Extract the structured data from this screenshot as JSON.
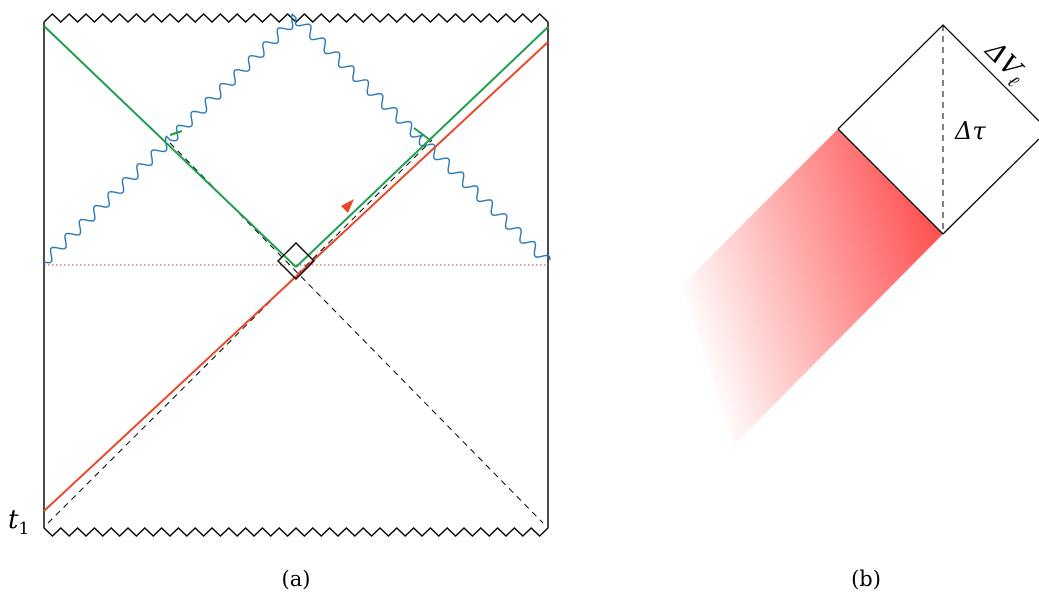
{
  "panel_a": {
    "caption": "(a)",
    "t_label": "t",
    "t_subscript": "1"
  },
  "panel_b": {
    "caption": "(b)",
    "delta_v_label": "ΔV",
    "delta_v_subscript": "ℓ",
    "delta_tau_label": "Δτ"
  },
  "colors": {
    "frame": "#000000",
    "null_ray_green": "#1a9e4a",
    "infalling_red": "#e8472a",
    "singularity_blue": "#2a7ab8",
    "dotted_line": "#b04040",
    "shading": "#ff4a4a"
  }
}
